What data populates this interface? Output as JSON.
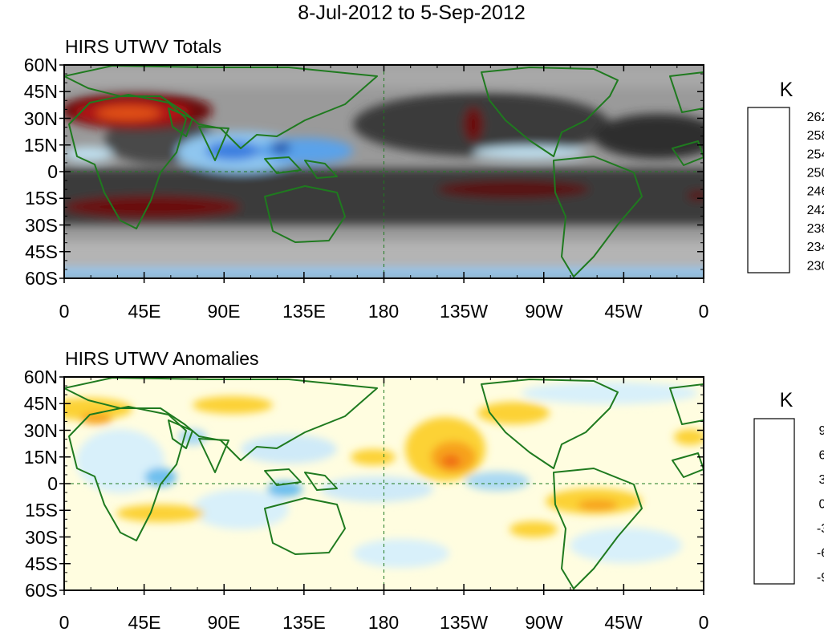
{
  "figure": {
    "title": "8-Jul-2012 to 5-Sep-2012",
    "x_ticks": [
      "0",
      "45E",
      "90E",
      "135E",
      "180",
      "135W",
      "90W",
      "45W",
      "0"
    ],
    "y_ticks": [
      "60N",
      "45N",
      "30N",
      "15N",
      "0",
      "15S",
      "30S",
      "45S",
      "60S"
    ]
  },
  "panels": [
    {
      "id": "totals",
      "title": "HIRS UTWV Totals",
      "units": "K",
      "colorbar_labels": [
        "262",
        "258",
        "254",
        "250",
        "246",
        "242",
        "238",
        "234",
        "230"
      ],
      "colorbar_colors": [
        "#d9620f",
        "#e84a18",
        "#b41a1a",
        "#7a0c0c",
        "#4a0606",
        "#2b2b2b",
        "#3f3f3f",
        "#555555",
        "#6b6b6b",
        "#808080",
        "#969696",
        "#ababab",
        "#c0c0c0",
        "#bfe0f0",
        "#8fc6ef",
        "#5aa2ea",
        "#3a7fe0",
        "#2a60b4",
        "#1c3f8a",
        "#161e6a"
      ]
    },
    {
      "id": "anomalies",
      "title": "HIRS UTWV Anomalies",
      "units": "K",
      "colorbar_labels": [
        "9",
        "6",
        "3",
        "0",
        "-3",
        "-6",
        "-9"
      ],
      "colorbar_colors": [
        "#f07ac0",
        "#b8262e",
        "#8e1a1a",
        "#e22a10",
        "#f06e14",
        "#f7a21a",
        "#fcd234",
        "#fdf078",
        "#fffdd8",
        "#d8f0fa",
        "#aad9f3",
        "#6fc0ee",
        "#13b6e8",
        "#1a8ce8",
        "#1458d8",
        "#0a22b8",
        "#0a0a7a",
        "#8a2be2"
      ]
    }
  ]
}
